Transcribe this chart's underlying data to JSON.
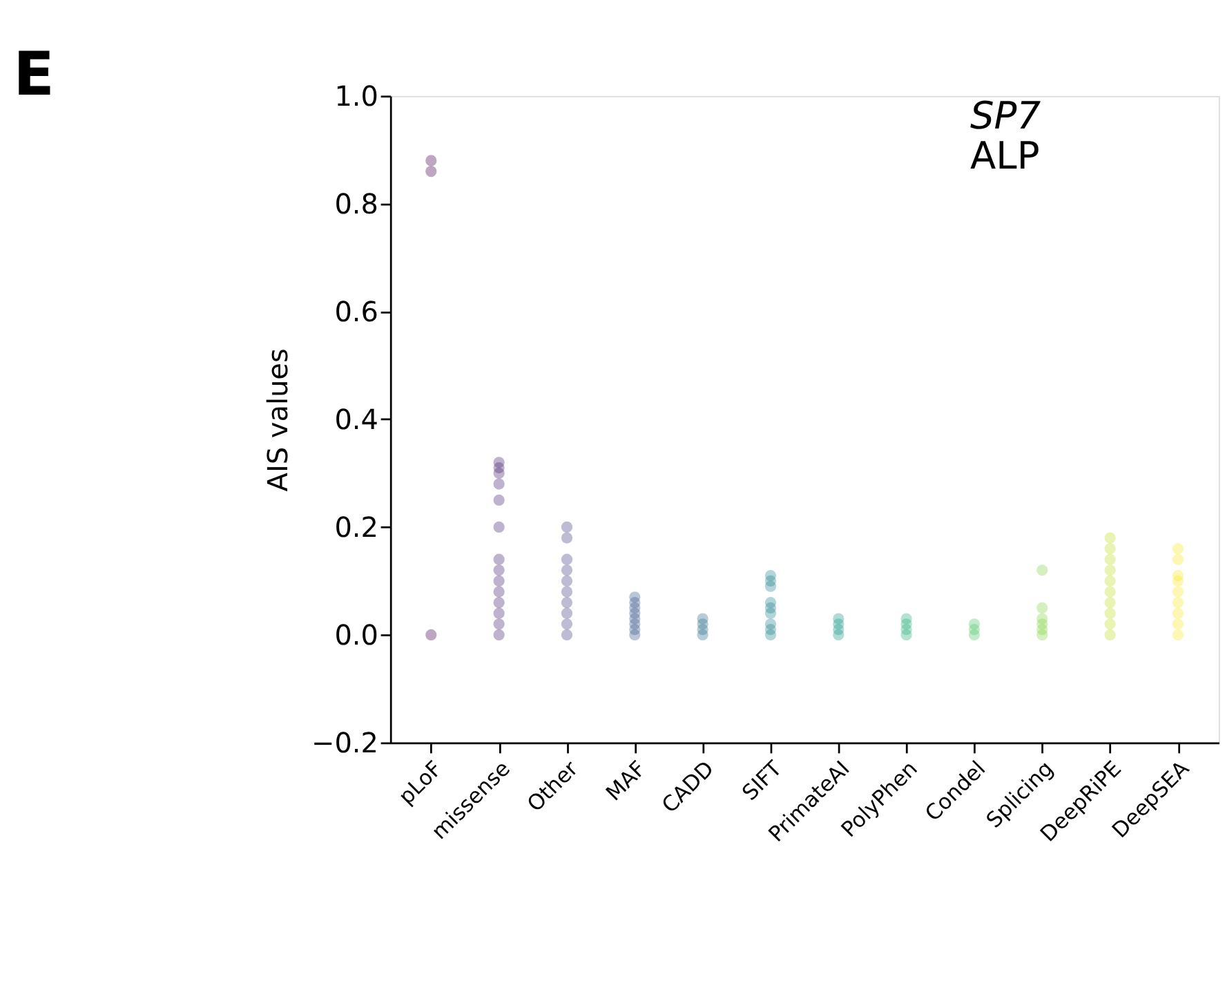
{
  "chart_data": {
    "type": "scatter",
    "title": "E",
    "ylabel": "AIS values",
    "categories": [
      "pLoF",
      "missense",
      "Other",
      "MAF",
      "CADD",
      "SIFT",
      "PrimateAI",
      "PolyPhen",
      "Condel",
      "Splicing",
      "DeepRiPE",
      "DeepSEA"
    ],
    "ylim": [
      -0.2,
      1.0
    ],
    "yticks": [
      {
        "value": -0.2,
        "label": "−0.2"
      },
      {
        "value": 0,
        "label": "0.0"
      },
      {
        "value": 0.2,
        "label": "0.2"
      },
      {
        "value": 0.4,
        "label": "0.4"
      },
      {
        "value": 0.6,
        "label": "0.6"
      },
      {
        "value": 0.8,
        "label": "0.8"
      },
      {
        "value": 1.0,
        "label": "1.0"
      }
    ],
    "annotations": [
      "SP7",
      "ALP"
    ],
    "grid": false,
    "legend": false,
    "marker": "circle",
    "series": [
      {
        "color": "#440154",
        "x": [
          "pLoF",
          "pLoF",
          "pLoF"
        ],
        "values": [
          0,
          0.86,
          0.88
        ]
      },
      {
        "color": "#482173",
        "x": [
          "missense",
          "missense",
          "missense",
          "missense",
          "missense",
          "missense",
          "missense",
          "missense",
          "missense",
          "missense",
          "missense",
          "missense",
          "missense",
          "missense"
        ],
        "values": [
          0,
          0.02,
          0.04,
          0.06,
          0.08,
          0.1,
          0.12,
          0.14,
          0.2,
          0.25,
          0.3,
          0.31,
          0.32,
          0.28
        ]
      },
      {
        "color": "#433e85",
        "x": [
          "Other",
          "Other",
          "Other",
          "Other",
          "Other",
          "Other",
          "Other",
          "Other",
          "Other",
          "Other"
        ],
        "values": [
          0,
          0.02,
          0.04,
          0.06,
          0.08,
          0.1,
          0.12,
          0.14,
          0.18,
          0.2
        ]
      },
      {
        "color": "#38588c",
        "x": [
          "MAF",
          "MAF",
          "MAF",
          "MAF",
          "MAF",
          "MAF",
          "MAF",
          "MAF"
        ],
        "values": [
          0,
          0.01,
          0.02,
          0.03,
          0.04,
          0.05,
          0.06,
          0.07
        ]
      },
      {
        "color": "#2d708e",
        "x": [
          "CADD",
          "CADD",
          "CADD",
          "CADD"
        ],
        "values": [
          0,
          0.01,
          0.02,
          0.03
        ]
      },
      {
        "color": "#25858e",
        "x": [
          "SIFT",
          "SIFT",
          "SIFT",
          "SIFT",
          "SIFT",
          "SIFT",
          "SIFT",
          "SIFT",
          "SIFT"
        ],
        "values": [
          0,
          0.01,
          0.02,
          0.04,
          0.05,
          0.06,
          0.09,
          0.1,
          0.11
        ]
      },
      {
        "color": "#1e9b8a",
        "x": [
          "PrimateAI",
          "PrimateAI",
          "PrimateAI",
          "PrimateAI"
        ],
        "values": [
          0,
          0.01,
          0.02,
          0.03
        ]
      },
      {
        "color": "#2ab07f",
        "x": [
          "PolyPhen",
          "PolyPhen",
          "PolyPhen",
          "PolyPhen"
        ],
        "values": [
          0,
          0.01,
          0.02,
          0.03
        ]
      },
      {
        "color": "#52c569",
        "x": [
          "Condel",
          "Condel",
          "Condel"
        ],
        "values": [
          0,
          0.01,
          0.02
        ]
      },
      {
        "color": "#86d549",
        "x": [
          "Splicing",
          "Splicing",
          "Splicing",
          "Splicing",
          "Splicing",
          "Splicing"
        ],
        "values": [
          0,
          0.01,
          0.02,
          0.03,
          0.05,
          0.12
        ]
      },
      {
        "color": "#c2df23",
        "x": [
          "DeepRiPE",
          "DeepRiPE",
          "DeepRiPE",
          "DeepRiPE",
          "DeepRiPE",
          "DeepRiPE",
          "DeepRiPE",
          "DeepRiPE",
          "DeepRiPE",
          "DeepRiPE"
        ],
        "values": [
          0,
          0.02,
          0.04,
          0.06,
          0.08,
          0.1,
          0.12,
          0.14,
          0.16,
          0.18
        ]
      },
      {
        "color": "#fde725",
        "x": [
          "DeepSEA",
          "DeepSEA",
          "DeepSEA",
          "DeepSEA",
          "DeepSEA",
          "DeepSEA",
          "DeepSEA",
          "DeepSEA",
          "DeepSEA"
        ],
        "values": [
          0,
          0.02,
          0.04,
          0.06,
          0.08,
          0.1,
          0.11,
          0.14,
          0.16
        ]
      }
    ]
  }
}
